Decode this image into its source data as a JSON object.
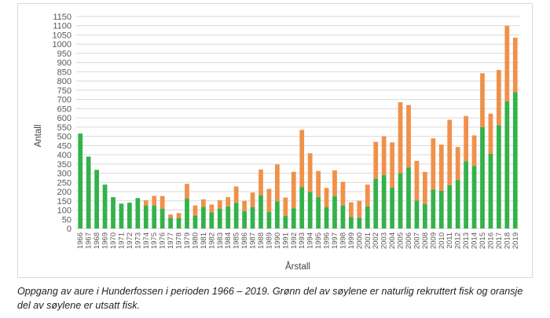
{
  "chart_data": {
    "type": "bar",
    "stacked": true,
    "title": "",
    "xlabel": "Årstall",
    "ylabel": "Antall",
    "ylim": [
      0,
      1150
    ],
    "ytick_step": 50,
    "grid": "horizontal",
    "legend": "none",
    "colors": {
      "natural": "#33b24a",
      "stocked": "#f0914a",
      "grid": "#d9d9d9"
    },
    "categories": [
      "1966",
      "1967",
      "1968",
      "1969",
      "1970",
      "1971",
      "1972",
      "1973",
      "1974",
      "1975",
      "1976",
      "1977",
      "1978",
      "1979",
      "1980",
      "1981",
      "1982",
      "1983",
      "1984",
      "1985",
      "1986",
      "1987",
      "1988",
      "1989",
      "1990",
      "1991",
      "1992",
      "1993",
      "1994",
      "1995",
      "1996",
      "1997",
      "1998",
      "1999",
      "2000",
      "2001",
      "2002",
      "2003",
      "2004",
      "2005",
      "2006",
      "2007",
      "2008",
      "2009",
      "2010",
      "2011",
      "2012",
      "2013",
      "2014",
      "2015",
      "2016",
      "2017",
      "2018",
      "2019"
    ],
    "series": [
      {
        "key": "natural",
        "values": [
          515,
          390,
          318,
          238,
          170,
          135,
          140,
          165,
          125,
          125,
          108,
          58,
          57,
          162,
          70,
          118,
          88,
          108,
          120,
          140,
          95,
          115,
          180,
          90,
          148,
          68,
          110,
          225,
          198,
          170,
          115,
          175,
          125,
          62,
          58,
          120,
          270,
          290,
          222,
          300,
          330,
          152,
          132,
          212,
          205,
          235,
          262,
          365,
          340,
          550,
          405,
          560,
          690,
          740
        ]
      },
      {
        "key": "stocked",
        "values": [
          0,
          0,
          0,
          0,
          0,
          0,
          0,
          0,
          28,
          52,
          68,
          18,
          27,
          80,
          55,
          40,
          42,
          45,
          50,
          88,
          55,
          80,
          140,
          125,
          200,
          100,
          197,
          310,
          210,
          142,
          105,
          140,
          128,
          80,
          92,
          118,
          200,
          210,
          245,
          385,
          340,
          215,
          175,
          277,
          250,
          355,
          180,
          245,
          165,
          292,
          218,
          300,
          410,
          295
        ]
      }
    ]
  },
  "caption": "Oppgang av aure i Hunderfossen i perioden 1966 – 2019. Grønn del av søylene er naturlig rekruttert fisk og oransje del av søylene er utsatt fisk."
}
